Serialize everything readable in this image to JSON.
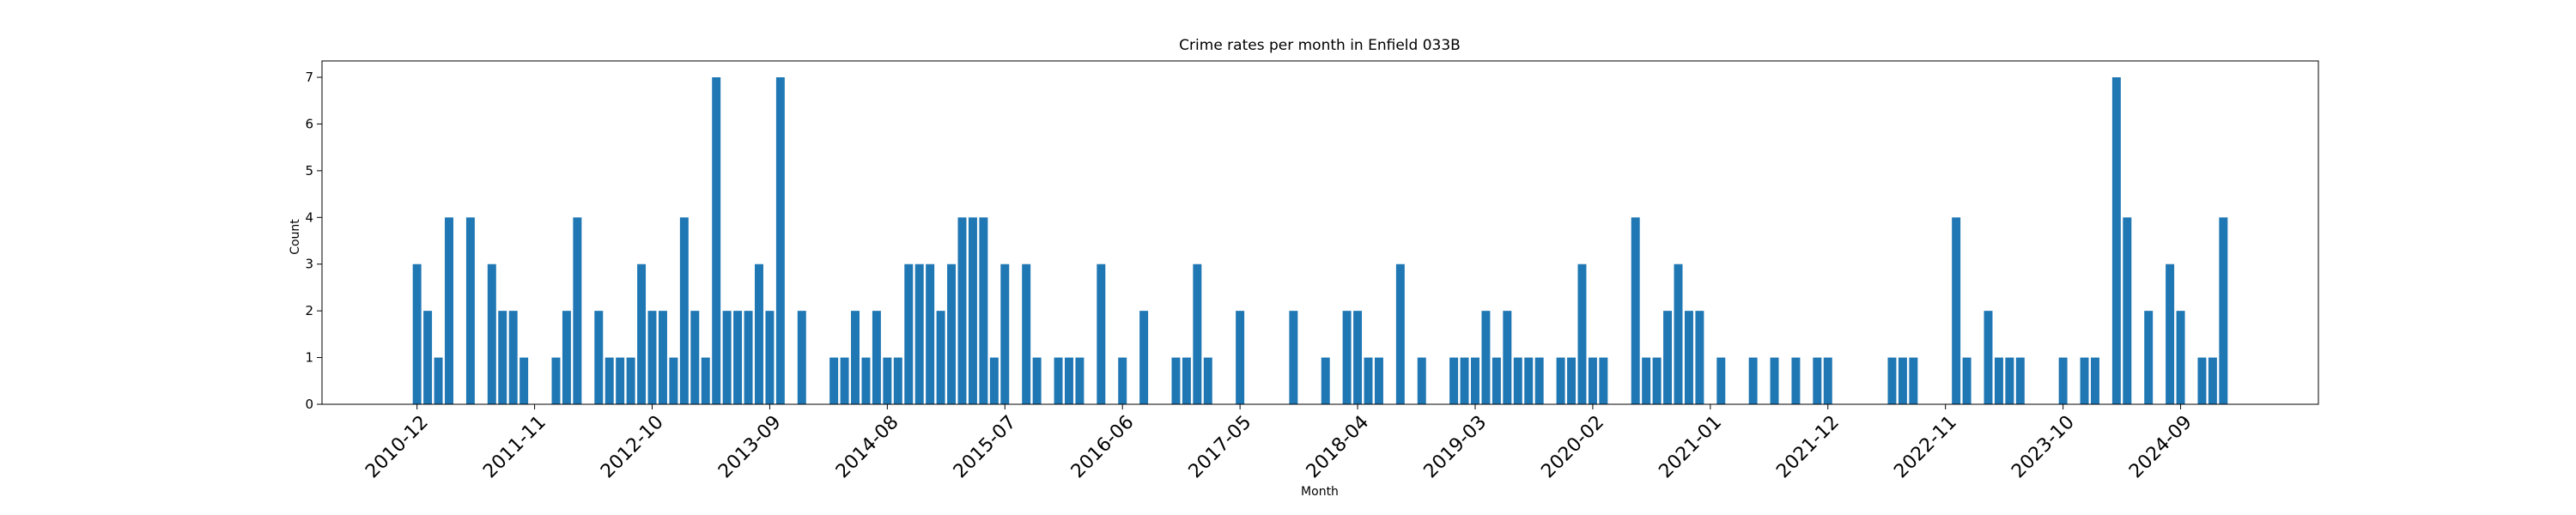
{
  "chart_data": {
    "type": "bar",
    "title": "Crime rates per month in Enfield 033B",
    "xlabel": "Month",
    "ylabel": "Count",
    "color": "#1f77b4",
    "categories": [
      "2010-12",
      null,
      null,
      null,
      null,
      null,
      null,
      null,
      null,
      null,
      null,
      "2011-11",
      null,
      null,
      null,
      null,
      null,
      null,
      null,
      null,
      null,
      null,
      "2012-10",
      null,
      null,
      null,
      null,
      null,
      null,
      null,
      null,
      null,
      null,
      "2013-09",
      null,
      null,
      null,
      null,
      null,
      null,
      null,
      null,
      null,
      null,
      "2014-08",
      null,
      null,
      null,
      null,
      null,
      null,
      null,
      null,
      null,
      null,
      "2015-07",
      null,
      null,
      null,
      null,
      null,
      null,
      null,
      null,
      null,
      null,
      "2016-06",
      null,
      null,
      null,
      null,
      null,
      null,
      null,
      null,
      null,
      null,
      "2017-05",
      null,
      null,
      null,
      null,
      null,
      null,
      null,
      null,
      null,
      null,
      "2018-04",
      null,
      null,
      null,
      null,
      null,
      null,
      null,
      null,
      null,
      null,
      "2019-03",
      null,
      null,
      null,
      null,
      null,
      null,
      null,
      null,
      null,
      null,
      "2020-02",
      null,
      null,
      null,
      null,
      null,
      null,
      null,
      null,
      null,
      null,
      "2021-01",
      null,
      null,
      null,
      null,
      null,
      null,
      null,
      null,
      null,
      null,
      "2021-12",
      null,
      null,
      null,
      null,
      null,
      null,
      null,
      null,
      null,
      null,
      "2022-11",
      null,
      null,
      null,
      null,
      null,
      null,
      null,
      null,
      null,
      null,
      "2023-10",
      null,
      null,
      null,
      null,
      null,
      null,
      null,
      null,
      null,
      null,
      "2024-09",
      null,
      null,
      null,
      null
    ],
    "values": [
      3,
      2,
      1,
      4,
      0,
      4,
      0,
      3,
      2,
      2,
      1,
      0,
      0,
      1,
      2,
      4,
      0,
      2,
      1,
      1,
      1,
      3,
      2,
      2,
      1,
      4,
      2,
      1,
      7,
      2,
      2,
      2,
      3,
      2,
      7,
      0,
      2,
      0,
      0,
      1,
      1,
      2,
      1,
      2,
      1,
      1,
      3,
      3,
      3,
      2,
      3,
      4,
      4,
      4,
      1,
      3,
      0,
      3,
      1,
      0,
      1,
      1,
      1,
      0,
      3,
      0,
      1,
      0,
      2,
      0,
      0,
      1,
      1,
      3,
      1,
      0,
      0,
      2,
      0,
      0,
      0,
      0,
      2,
      0,
      0,
      1,
      0,
      2,
      2,
      1,
      1,
      0,
      3,
      0,
      1,
      0,
      0,
      1,
      1,
      1,
      2,
      1,
      2,
      1,
      1,
      1,
      0,
      1,
      1,
      3,
      1,
      1,
      0,
      0,
      4,
      1,
      1,
      2,
      3,
      2,
      2,
      0,
      1,
      0,
      0,
      1,
      0,
      1,
      0,
      1,
      0,
      1,
      1,
      0,
      0,
      0,
      0,
      0,
      1,
      1,
      1,
      0,
      0,
      0,
      4,
      1,
      0,
      2,
      1,
      1,
      1,
      0,
      0,
      0,
      1,
      0,
      1,
      1,
      0,
      7,
      4,
      0,
      2,
      0,
      3,
      2,
      0,
      1,
      1,
      4
    ],
    "ylim": [
      0,
      7.35
    ],
    "yticks": [
      0,
      1,
      2,
      3,
      4,
      5,
      6,
      7
    ],
    "grid": false
  }
}
